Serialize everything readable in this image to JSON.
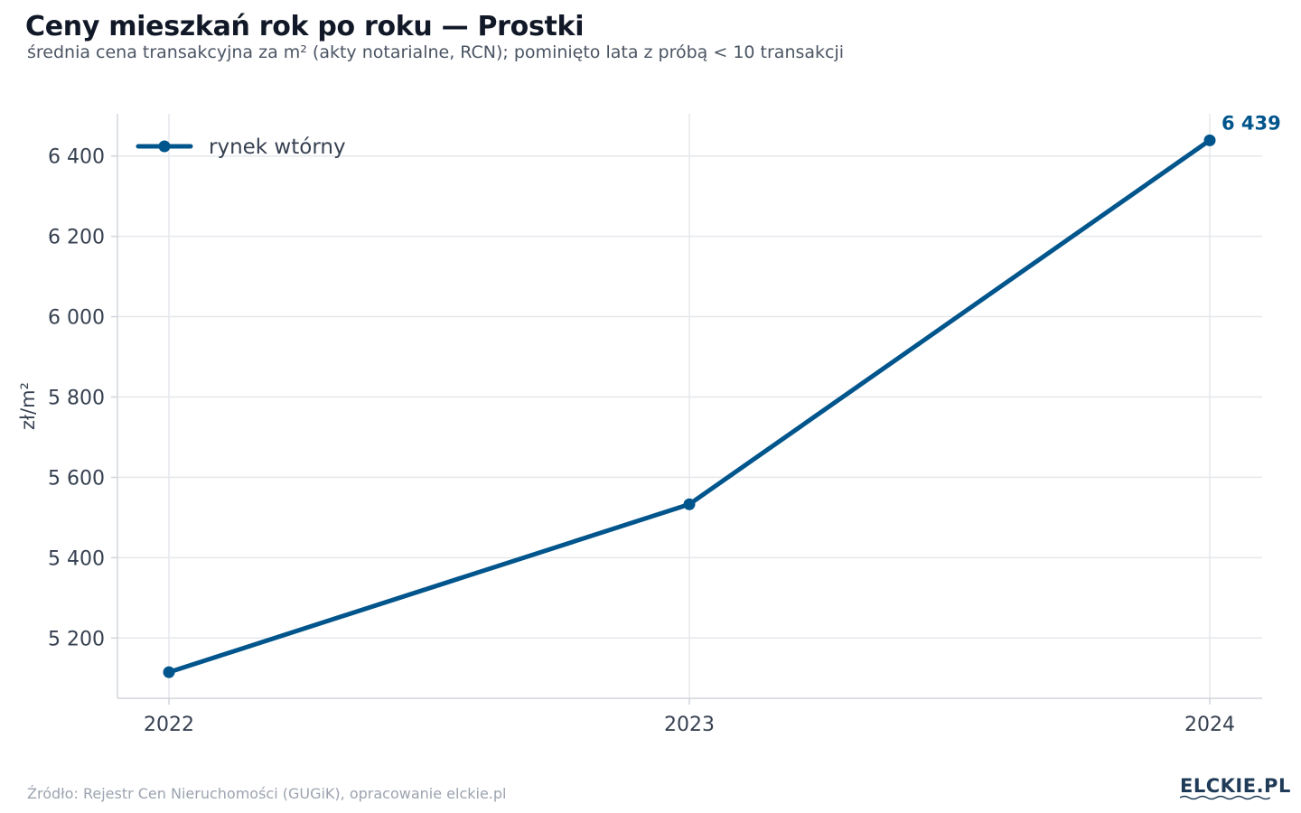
{
  "title": "Ceny mieszkań rok po roku — Prostki",
  "subtitle": "średnia cena transakcyjna za m² (akty notarialne, RCN); pominięto lata z próbą < 10 transakcji",
  "source": "Źródło: Rejestr Cen Nieruchomości (GUGiK), opracowanie elckie.pl",
  "logo": "ELCKIE.PL",
  "colors": {
    "series": "#00558c",
    "grid": "#e5e7eb",
    "axis": "#d1d5db",
    "tick_text": "#374151",
    "title": "#111827",
    "subtitle": "#4b5563",
    "source": "#9ca3af"
  },
  "chart_data": {
    "type": "line",
    "x": [
      "2022",
      "2023",
      "2024"
    ],
    "series": [
      {
        "name": "rynek wtórny",
        "values": [
          5115,
          5533,
          6439
        ],
        "color": "#00558c"
      }
    ],
    "ylabel": "zł/m²",
    "xlabel": "",
    "ylim": [
      5050,
      6505
    ],
    "yticks": [
      5200,
      5400,
      5600,
      5800,
      6000,
      6200,
      6400
    ],
    "ytick_labels": [
      "5 200",
      "5 400",
      "5 600",
      "5 800",
      "6 000",
      "6 200",
      "6 400"
    ],
    "annotation": {
      "text": "6 439",
      "series_index": 0,
      "point_index": 2
    },
    "legend": {
      "position": "top-left"
    },
    "grid": true
  }
}
